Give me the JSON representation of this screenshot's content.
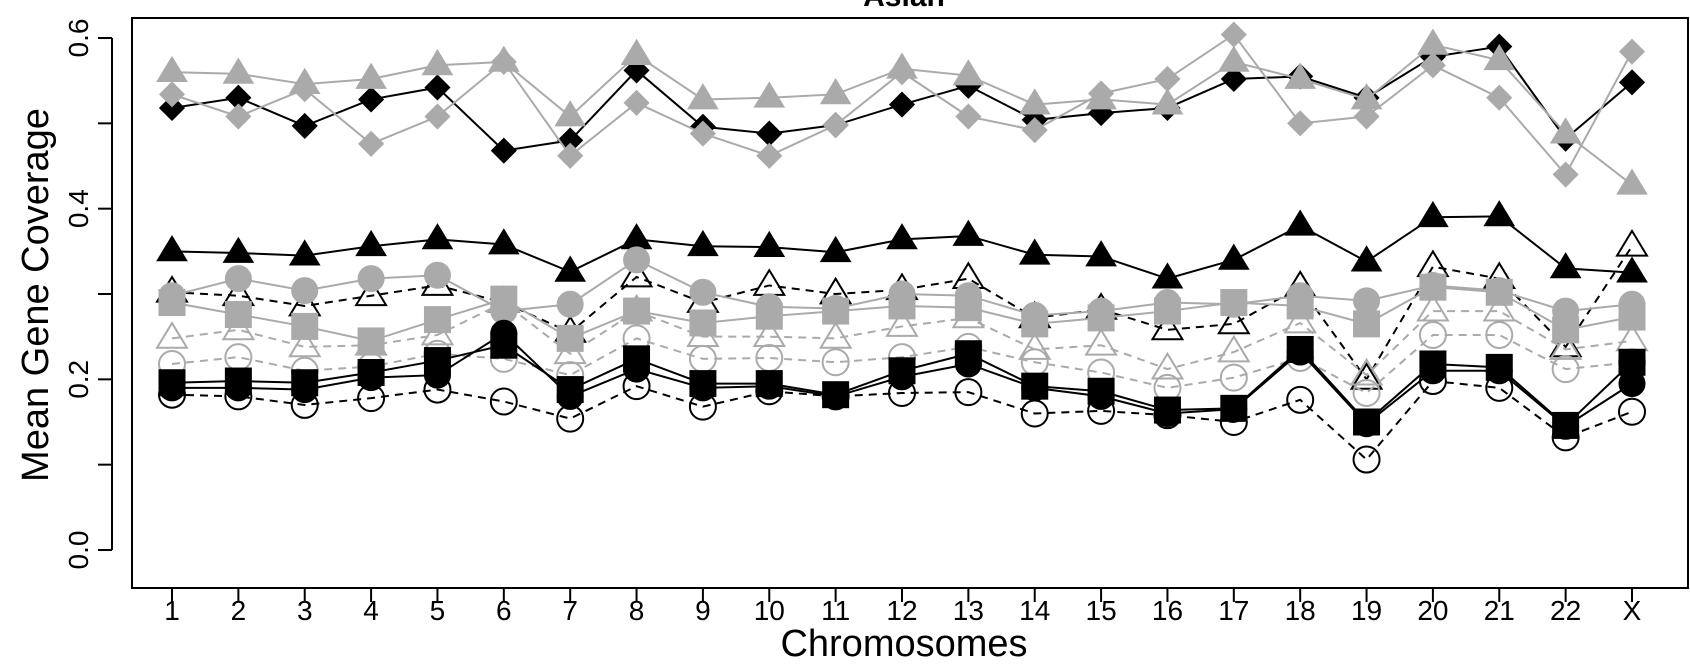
{
  "chart_data": {
    "type": "line",
    "title": "Asian",
    "xlabel": "Chromosomes",
    "ylabel": "Mean Gene Coverage",
    "ylim": [
      0.0,
      0.6
    ],
    "yticks": [
      "0.0",
      "0.2",
      "0.4",
      "0.6"
    ],
    "grid": false,
    "categories": [
      "1",
      "2",
      "3",
      "4",
      "5",
      "6",
      "7",
      "8",
      "9",
      "10",
      "11",
      "12",
      "13",
      "14",
      "15",
      "16",
      "17",
      "18",
      "19",
      "20",
      "21",
      "22",
      "X"
    ],
    "series": [
      {
        "marker": "diamond",
        "fill": "#000000",
        "stroke": "#000000",
        "line": "#000000",
        "dash": "solid",
        "values": [
          0.518,
          0.53,
          0.497,
          0.528,
          0.542,
          0.468,
          0.48,
          0.562,
          0.496,
          0.488,
          0.498,
          0.522,
          0.544,
          0.504,
          0.512,
          0.518,
          0.552,
          0.555,
          0.53,
          0.578,
          0.59,
          0.482,
          0.548
        ]
      },
      {
        "marker": "diamond",
        "fill": "#aaaaaa",
        "stroke": "#aaaaaa",
        "line": "#aaaaaa",
        "dash": "solid",
        "values": [
          0.534,
          0.508,
          0.54,
          0.476,
          0.508,
          0.572,
          0.462,
          0.524,
          0.488,
          0.462,
          0.498,
          0.56,
          0.508,
          0.492,
          0.535,
          0.552,
          0.604,
          0.5,
          0.508,
          0.568,
          0.53,
          0.44,
          0.584
        ]
      },
      {
        "marker": "triangle",
        "fill": "#aaaaaa",
        "stroke": "#aaaaaa",
        "line": "#aaaaaa",
        "dash": "solid",
        "values": [
          0.56,
          0.558,
          0.546,
          0.552,
          0.568,
          0.572,
          0.508,
          0.58,
          0.528,
          0.53,
          0.534,
          0.564,
          0.556,
          0.522,
          0.528,
          0.522,
          0.572,
          0.552,
          0.528,
          0.592,
          0.574,
          0.488,
          0.428
        ]
      },
      {
        "marker": "triangle",
        "fill": "#000000",
        "stroke": "#000000",
        "line": "#000000",
        "dash": "solid",
        "values": [
          0.35,
          0.348,
          0.345,
          0.356,
          0.364,
          0.358,
          0.326,
          0.364,
          0.356,
          0.355,
          0.349,
          0.364,
          0.368,
          0.346,
          0.344,
          0.318,
          0.34,
          0.38,
          0.338,
          0.39,
          0.391,
          0.33,
          0.325
        ]
      },
      {
        "marker": "triangle",
        "fill": "none",
        "stroke": "#000000",
        "line": "#000000",
        "dash": "dashed",
        "values": [
          0.302,
          0.298,
          0.286,
          0.298,
          0.31,
          0.29,
          0.255,
          0.32,
          0.29,
          0.31,
          0.3,
          0.305,
          0.318,
          0.272,
          0.282,
          0.258,
          0.265,
          0.308,
          0.2,
          0.332,
          0.318,
          0.238,
          0.356
        ]
      },
      {
        "marker": "circle",
        "fill": "#aaaaaa",
        "stroke": "#aaaaaa",
        "line": "#aaaaaa",
        "dash": "solid",
        "values": [
          0.298,
          0.318,
          0.304,
          0.318,
          0.322,
          0.28,
          0.288,
          0.34,
          0.302,
          0.285,
          0.283,
          0.3,
          0.298,
          0.275,
          0.28,
          0.29,
          0.288,
          0.298,
          0.292,
          0.31,
          0.304,
          0.28,
          0.288
        ]
      },
      {
        "marker": "square",
        "fill": "#aaaaaa",
        "stroke": "#aaaaaa",
        "line": "#aaaaaa",
        "dash": "solid",
        "values": [
          0.29,
          0.276,
          0.262,
          0.245,
          0.27,
          0.294,
          0.248,
          0.28,
          0.266,
          0.274,
          0.28,
          0.286,
          0.284,
          0.265,
          0.272,
          0.28,
          0.29,
          0.286,
          0.265,
          0.308,
          0.302,
          0.258,
          0.273
        ]
      },
      {
        "marker": "triangle",
        "fill": "none",
        "stroke": "#aaaaaa",
        "line": "#aaaaaa",
        "dash": "dashed",
        "values": [
          0.248,
          0.258,
          0.238,
          0.24,
          0.252,
          0.29,
          0.23,
          0.28,
          0.25,
          0.25,
          0.248,
          0.262,
          0.272,
          0.235,
          0.24,
          0.212,
          0.232,
          0.266,
          0.205,
          0.28,
          0.28,
          0.235,
          0.245
        ]
      },
      {
        "marker": "circle",
        "fill": "none",
        "stroke": "#aaaaaa",
        "line": "#aaaaaa",
        "dash": "dashed",
        "values": [
          0.218,
          0.226,
          0.21,
          0.215,
          0.23,
          0.224,
          0.205,
          0.248,
          0.224,
          0.225,
          0.22,
          0.226,
          0.238,
          0.22,
          0.208,
          0.19,
          0.202,
          0.225,
          0.184,
          0.252,
          0.252,
          0.212,
          0.22
        ]
      },
      {
        "marker": "circle",
        "fill": "#000000",
        "stroke": "#000000",
        "line": "#000000",
        "dash": "solid",
        "values": [
          0.19,
          0.19,
          0.188,
          0.202,
          0.205,
          0.254,
          0.18,
          0.212,
          0.19,
          0.192,
          0.18,
          0.203,
          0.218,
          0.19,
          0.18,
          0.16,
          0.165,
          0.232,
          0.148,
          0.21,
          0.21,
          0.145,
          0.195
        ]
      },
      {
        "marker": "square",
        "fill": "#000000",
        "stroke": "#000000",
        "line": "#000000",
        "dash": "solid",
        "values": [
          0.196,
          0.198,
          0.196,
          0.208,
          0.222,
          0.24,
          0.188,
          0.224,
          0.195,
          0.195,
          0.182,
          0.21,
          0.23,
          0.192,
          0.186,
          0.164,
          0.166,
          0.235,
          0.15,
          0.218,
          0.214,
          0.146,
          0.22
        ]
      },
      {
        "marker": "circle",
        "fill": "none",
        "stroke": "#000000",
        "line": "#000000",
        "dash": "dashed",
        "values": [
          0.182,
          0.18,
          0.17,
          0.178,
          0.188,
          0.174,
          0.154,
          0.192,
          0.168,
          0.186,
          0.18,
          0.184,
          0.185,
          0.16,
          0.163,
          0.158,
          0.15,
          0.176,
          0.106,
          0.198,
          0.19,
          0.132,
          0.162
        ]
      }
    ]
  }
}
